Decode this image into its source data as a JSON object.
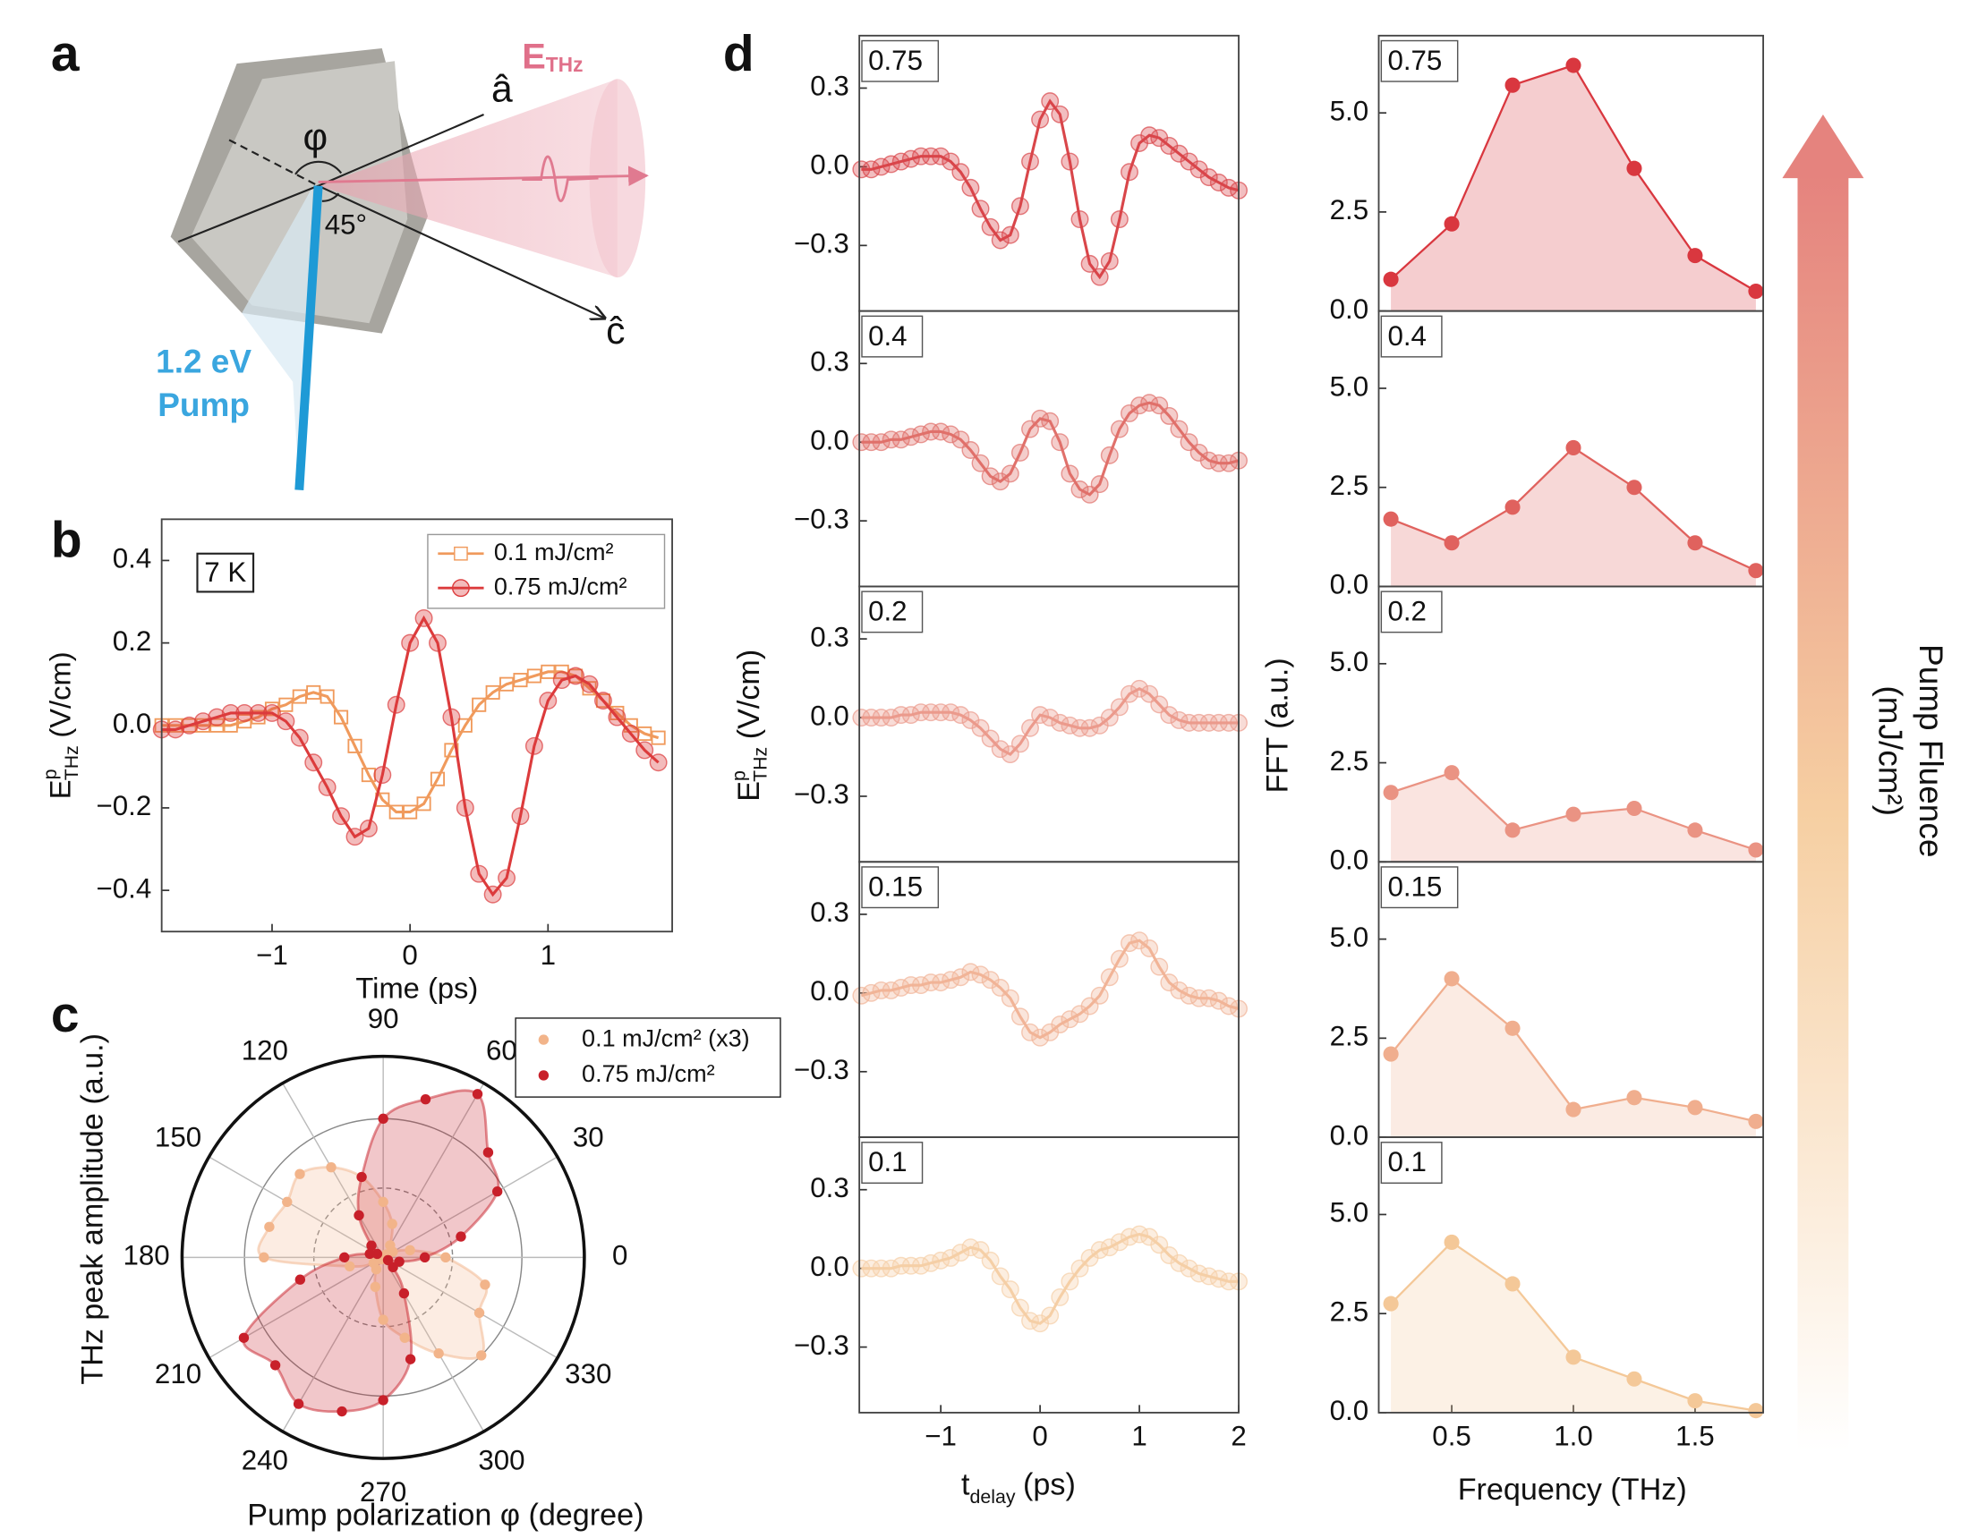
{
  "panel_labels": [
    "a",
    "b",
    "c",
    "d"
  ],
  "diagram": {
    "field_symbol": "E",
    "field_subscript": "THz",
    "a_axis": "â",
    "c_axis": "ĉ",
    "angle_phi": "φ",
    "angle_45": "45°",
    "pump_energy": "1.2 eV",
    "pump_word": "Pump"
  },
  "panel_d": {
    "time_ylabel": {
      "base": "E",
      "sup": "p",
      "sub": "THz",
      "unit": "(V/cm)"
    },
    "time_xlabel": {
      "base": "t",
      "sub": "delay",
      "unit": "(ps)"
    },
    "fft_ylabel": "FFT (a.u.)",
    "fft_xlabel": "Frequency (THz)",
    "colorbar_label": [
      "Pump Fluence",
      "(mJ/cm²)"
    ]
  },
  "chart_data": [
    {
      "type": "line",
      "annotation": "7 K",
      "xlabel": "Time (ps)",
      "ylabel": {
        "base": "E",
        "sup": "p",
        "sub": "THz",
        "unit": "(V/cm)"
      },
      "legend": "upper right",
      "xlim": [
        -1.8,
        1.9
      ],
      "ylim": [
        -0.5,
        0.5
      ],
      "xticks": [
        {
          "value": -1,
          "label": "−1"
        },
        0,
        1
      ],
      "yticks": [
        {
          "value": -0.4,
          "label": "−0.4"
        },
        {
          "value": -0.2,
          "label": "−0.2"
        },
        {
          "value": 0,
          "label": "0.0"
        },
        0.2,
        0.4
      ],
      "x": [
        -1.8,
        -1.7,
        -1.6,
        -1.5,
        -1.4,
        -1.3,
        -1.2,
        -1.1,
        -1.0,
        -0.9,
        -0.8,
        -0.7,
        -0.6,
        -0.5,
        -0.4,
        -0.3,
        -0.2,
        -0.1,
        0,
        0.1,
        0.2,
        0.3,
        0.4,
        0.5,
        0.6,
        0.7,
        0.8,
        0.9,
        1.0,
        1.1,
        1.2,
        1.3,
        1.4,
        1.5,
        1.6,
        1.7,
        1.8
      ],
      "series": [
        {
          "name": "0.1 mJ/cm²",
          "color": "#f09a5c",
          "marker": "square",
          "values": [
            0,
            0,
            0,
            0,
            0,
            0,
            0.01,
            0.02,
            0.04,
            0.05,
            0.07,
            0.08,
            0.07,
            0.02,
            -0.05,
            -0.12,
            -0.18,
            -0.21,
            -0.21,
            -0.19,
            -0.13,
            -0.06,
            0,
            0.05,
            0.08,
            0.1,
            0.11,
            0.12,
            0.13,
            0.13,
            0.12,
            0.09,
            0.06,
            0.03,
            0,
            -0.02,
            -0.03
          ]
        },
        {
          "name": "0.75 mJ/cm²",
          "color": "#dc3b3c",
          "marker": "circle",
          "values": [
            -0.01,
            -0.01,
            0,
            0.01,
            0.02,
            0.03,
            0.03,
            0.03,
            0.03,
            0.01,
            -0.03,
            -0.09,
            -0.15,
            -0.22,
            -0.27,
            -0.25,
            -0.12,
            0.05,
            0.2,
            0.26,
            0.2,
            0.02,
            -0.2,
            -0.36,
            -0.41,
            -0.37,
            -0.22,
            -0.05,
            0.06,
            0.11,
            0.12,
            0.1,
            0.06,
            0.02,
            -0.02,
            -0.06,
            -0.09
          ]
        }
      ]
    },
    {
      "type": "polar",
      "xlabel": "Pump polarization φ (degree)",
      "ylabel": "THz peak amplitude (a.u.)",
      "rlim": [
        0,
        1.45
      ],
      "rticks": [
        0.5,
        1.0
      ],
      "theta_ticks": [
        0,
        30,
        60,
        90,
        120,
        150,
        180,
        210,
        240,
        270,
        300,
        330
      ],
      "theta": [
        0,
        15,
        30,
        45,
        60,
        75,
        90,
        105,
        120,
        135,
        150,
        165,
        180,
        195,
        210,
        225,
        240,
        255,
        270,
        285,
        300,
        315,
        330,
        345
      ],
      "series": [
        {
          "name": "0.1 mJ/cm² (x3)",
          "color": "#f2b48a",
          "values": [
            0.45,
            0.2,
            0.08,
            0.03,
            0.1,
            0.25,
            0.4,
            0.6,
            0.75,
            0.85,
            0.8,
            0.85,
            0.86,
            0.25,
            0.08,
            0.02,
            0.1,
            0.22,
            0.45,
            0.6,
            0.8,
            1.0,
            0.8,
            0.76
          ]
        },
        {
          "name": "0.75 mJ/cm²",
          "color": "#c8202a",
          "values": [
            0.3,
            0.58,
            0.95,
            1.07,
            1.36,
            1.18,
            1.0,
            0.6,
            0.35,
            0.12,
            0.05,
            0.1,
            0.28,
            0.62,
            1.16,
            1.1,
            1.22,
            1.15,
            1.03,
            0.76,
            0.3,
            0.1,
            0.04,
            0.12
          ]
        }
      ]
    },
    {
      "type": "line",
      "title": "0.75",
      "xlim": [
        -1.82,
        2
      ],
      "ylim": [
        -0.55,
        0.5
      ],
      "yticks": [
        {
          "value": -0.3,
          "label": "−0.3"
        },
        {
          "value": 0,
          "label": "0.0"
        },
        0.3
      ],
      "x": [
        -1.8,
        -1.7,
        -1.6,
        -1.5,
        -1.4,
        -1.3,
        -1.2,
        -1.1,
        -1.0,
        -0.9,
        -0.8,
        -0.7,
        -0.6,
        -0.5,
        -0.4,
        -0.3,
        -0.2,
        -0.1,
        0,
        0.1,
        0.2,
        0.3,
        0.4,
        0.5,
        0.6,
        0.7,
        0.8,
        0.9,
        1.0,
        1.1,
        1.2,
        1.3,
        1.4,
        1.5,
        1.6,
        1.7,
        1.8,
        1.9,
        2.0
      ],
      "series": [
        {
          "color": "#d9464a",
          "marker": "circle",
          "values": [
            -0.01,
            -0.01,
            0,
            0.01,
            0.02,
            0.03,
            0.04,
            0.04,
            0.04,
            0.02,
            -0.02,
            -0.08,
            -0.16,
            -0.23,
            -0.28,
            -0.26,
            -0.15,
            0.02,
            0.18,
            0.25,
            0.2,
            0.02,
            -0.2,
            -0.37,
            -0.42,
            -0.36,
            -0.2,
            -0.02,
            0.09,
            0.12,
            0.11,
            0.08,
            0.05,
            0.02,
            -0.01,
            -0.04,
            -0.06,
            -0.08,
            -0.09
          ]
        }
      ]
    },
    {
      "type": "line",
      "title": "0.4",
      "xlim": [
        -1.82,
        2
      ],
      "ylim": [
        -0.55,
        0.5
      ],
      "yticks": [
        {
          "value": -0.3,
          "label": "−0.3"
        },
        {
          "value": 0,
          "label": "0.0"
        },
        0.3
      ],
      "x": [
        -1.8,
        -1.7,
        -1.6,
        -1.5,
        -1.4,
        -1.3,
        -1.2,
        -1.1,
        -1.0,
        -0.9,
        -0.8,
        -0.7,
        -0.6,
        -0.5,
        -0.4,
        -0.3,
        -0.2,
        -0.1,
        0,
        0.1,
        0.2,
        0.3,
        0.4,
        0.5,
        0.6,
        0.7,
        0.8,
        0.9,
        1.0,
        1.1,
        1.2,
        1.3,
        1.4,
        1.5,
        1.6,
        1.7,
        1.8,
        1.9,
        2.0
      ],
      "series": [
        {
          "color": "#e0716b",
          "marker": "circle",
          "values": [
            0,
            0,
            0,
            0.01,
            0.01,
            0.02,
            0.03,
            0.04,
            0.04,
            0.03,
            0.01,
            -0.03,
            -0.08,
            -0.13,
            -0.15,
            -0.12,
            -0.04,
            0.05,
            0.09,
            0.08,
            0,
            -0.12,
            -0.18,
            -0.2,
            -0.16,
            -0.05,
            0.05,
            0.11,
            0.14,
            0.15,
            0.14,
            0.1,
            0.05,
            0,
            -0.04,
            -0.07,
            -0.08,
            -0.08,
            -0.07
          ]
        }
      ]
    },
    {
      "type": "line",
      "title": "0.2",
      "xlim": [
        -1.82,
        2
      ],
      "ylim": [
        -0.55,
        0.5
      ],
      "yticks": [
        {
          "value": -0.3,
          "label": "−0.3"
        },
        {
          "value": 0,
          "label": "0.0"
        },
        0.3
      ],
      "x": [
        -1.8,
        -1.7,
        -1.6,
        -1.5,
        -1.4,
        -1.3,
        -1.2,
        -1.1,
        -1.0,
        -0.9,
        -0.8,
        -0.7,
        -0.6,
        -0.5,
        -0.4,
        -0.3,
        -0.2,
        -0.1,
        0,
        0.1,
        0.2,
        0.3,
        0.4,
        0.5,
        0.6,
        0.7,
        0.8,
        0.9,
        1.0,
        1.1,
        1.2,
        1.3,
        1.4,
        1.5,
        1.6,
        1.7,
        1.8,
        1.9,
        2.0
      ],
      "series": [
        {
          "color": "#eb9a8c",
          "marker": "circle",
          "values": [
            0,
            0,
            0,
            0,
            0.01,
            0.01,
            0.02,
            0.02,
            0.02,
            0.02,
            0.01,
            -0.01,
            -0.04,
            -0.08,
            -0.12,
            -0.14,
            -0.1,
            -0.04,
            0.01,
            0,
            -0.02,
            -0.03,
            -0.04,
            -0.04,
            -0.03,
            0,
            0.04,
            0.09,
            0.11,
            0.09,
            0.05,
            0.01,
            -0.01,
            -0.02,
            -0.02,
            -0.02,
            -0.02,
            -0.02,
            -0.02
          ]
        }
      ]
    },
    {
      "type": "line",
      "title": "0.15",
      "xlim": [
        -1.82,
        2
      ],
      "ylim": [
        -0.55,
        0.5
      ],
      "yticks": [
        {
          "value": -0.3,
          "label": "−0.3"
        },
        {
          "value": 0,
          "label": "0.0"
        },
        0.3
      ],
      "x": [
        -1.8,
        -1.7,
        -1.6,
        -1.5,
        -1.4,
        -1.3,
        -1.2,
        -1.1,
        -1.0,
        -0.9,
        -0.8,
        -0.7,
        -0.6,
        -0.5,
        -0.4,
        -0.3,
        -0.2,
        -0.1,
        0,
        0.1,
        0.2,
        0.3,
        0.4,
        0.5,
        0.6,
        0.7,
        0.8,
        0.9,
        1.0,
        1.1,
        1.2,
        1.3,
        1.4,
        1.5,
        1.6,
        1.7,
        1.8,
        1.9,
        2.0
      ],
      "series": [
        {
          "color": "#f1b497",
          "marker": "circle",
          "values": [
            -0.01,
            0,
            0.01,
            0.01,
            0.02,
            0.03,
            0.03,
            0.04,
            0.04,
            0.05,
            0.06,
            0.08,
            0.07,
            0.05,
            0.02,
            -0.02,
            -0.09,
            -0.15,
            -0.17,
            -0.15,
            -0.12,
            -0.1,
            -0.08,
            -0.05,
            -0.01,
            0.06,
            0.13,
            0.19,
            0.2,
            0.17,
            0.1,
            0.04,
            0.01,
            -0.01,
            -0.02,
            -0.02,
            -0.03,
            -0.05,
            -0.06
          ]
        }
      ]
    },
    {
      "type": "line",
      "title": "0.1",
      "xlim": [
        -1.82,
        2
      ],
      "ylim": [
        -0.55,
        0.5
      ],
      "xticks": [
        {
          "value": -1,
          "label": "−1"
        },
        0,
        1,
        2
      ],
      "yticks": [
        {
          "value": -0.3,
          "label": "−0.3"
        },
        {
          "value": 0,
          "label": "0.0"
        },
        0.3
      ],
      "x": [
        -1.8,
        -1.7,
        -1.6,
        -1.5,
        -1.4,
        -1.3,
        -1.2,
        -1.1,
        -1.0,
        -0.9,
        -0.8,
        -0.7,
        -0.6,
        -0.5,
        -0.4,
        -0.3,
        -0.2,
        -0.1,
        0,
        0.1,
        0.2,
        0.3,
        0.4,
        0.5,
        0.6,
        0.7,
        0.8,
        0.9,
        1.0,
        1.1,
        1.2,
        1.3,
        1.4,
        1.5,
        1.6,
        1.7,
        1.8,
        1.9,
        2.0
      ],
      "series": [
        {
          "color": "#f5cfa6",
          "marker": "circle",
          "values": [
            0,
            0,
            0,
            0,
            0.01,
            0.01,
            0.01,
            0.02,
            0.03,
            0.04,
            0.06,
            0.08,
            0.07,
            0.03,
            -0.03,
            -0.08,
            -0.15,
            -0.2,
            -0.21,
            -0.18,
            -0.11,
            -0.05,
            0,
            0.04,
            0.07,
            0.08,
            0.1,
            0.12,
            0.13,
            0.12,
            0.09,
            0.05,
            0.02,
            0,
            -0.02,
            -0.03,
            -0.04,
            -0.05,
            -0.05
          ]
        }
      ]
    },
    {
      "type": "area",
      "title": "0.75",
      "xlim": [
        0.2,
        1.78
      ],
      "ylim": [
        0,
        6.95
      ],
      "yticks": [
        {
          "value": 0,
          "label": "0.0"
        },
        2.5,
        {
          "value": 5,
          "label": "5.0"
        }
      ],
      "x": [
        0.25,
        0.5,
        0.75,
        1.0,
        1.25,
        1.5,
        1.75
      ],
      "series": [
        {
          "color": "#d9373f",
          "values": [
            0.8,
            2.2,
            5.7,
            6.2,
            3.6,
            1.4,
            0.5
          ]
        }
      ]
    },
    {
      "type": "area",
      "title": "0.4",
      "xlim": [
        0.2,
        1.78
      ],
      "ylim": [
        0,
        6.95
      ],
      "yticks": [
        {
          "value": 0,
          "label": "0.0"
        },
        2.5,
        {
          "value": 5,
          "label": "5.0"
        }
      ],
      "x": [
        0.25,
        0.5,
        0.75,
        1.0,
        1.25,
        1.5,
        1.75
      ],
      "series": [
        {
          "color": "#e0625e",
          "values": [
            1.7,
            1.1,
            2.0,
            3.5,
            2.5,
            1.1,
            0.4
          ]
        }
      ]
    },
    {
      "type": "area",
      "title": "0.2",
      "xlim": [
        0.2,
        1.78
      ],
      "ylim": [
        0,
        6.95
      ],
      "yticks": [
        {
          "value": 0,
          "label": "0.0"
        },
        2.5,
        {
          "value": 5,
          "label": "5.0"
        }
      ],
      "x": [
        0.25,
        0.5,
        0.75,
        1.0,
        1.25,
        1.5,
        1.75
      ],
      "series": [
        {
          "color": "#ea9383",
          "values": [
            1.75,
            2.25,
            0.8,
            1.2,
            1.35,
            0.8,
            0.3
          ]
        }
      ]
    },
    {
      "type": "area",
      "title": "0.15",
      "xlim": [
        0.2,
        1.78
      ],
      "ylim": [
        0,
        6.95
      ],
      "yticks": [
        {
          "value": 0,
          "label": "0.0"
        },
        2.5,
        {
          "value": 5,
          "label": "5.0"
        }
      ],
      "x": [
        0.25,
        0.5,
        0.75,
        1.0,
        1.25,
        1.5,
        1.75
      ],
      "series": [
        {
          "color": "#f0ae8e",
          "values": [
            2.1,
            4.0,
            2.75,
            0.7,
            1.0,
            0.75,
            0.4
          ]
        }
      ]
    },
    {
      "type": "area",
      "title": "0.1",
      "xlim": [
        0.2,
        1.78
      ],
      "ylim": [
        0,
        6.95
      ],
      "xticks": [
        0.5,
        {
          "value": 1,
          "label": "1.0"
        },
        1.5
      ],
      "yticks": [
        {
          "value": 0,
          "label": "0.0"
        },
        2.5,
        {
          "value": 5,
          "label": "5.0"
        }
      ],
      "x": [
        0.25,
        0.5,
        0.75,
        1.0,
        1.25,
        1.5,
        1.75
      ],
      "series": [
        {
          "color": "#f4c898",
          "values": [
            2.75,
            4.3,
            3.25,
            1.4,
            0.85,
            0.3,
            0.05
          ]
        }
      ]
    }
  ]
}
